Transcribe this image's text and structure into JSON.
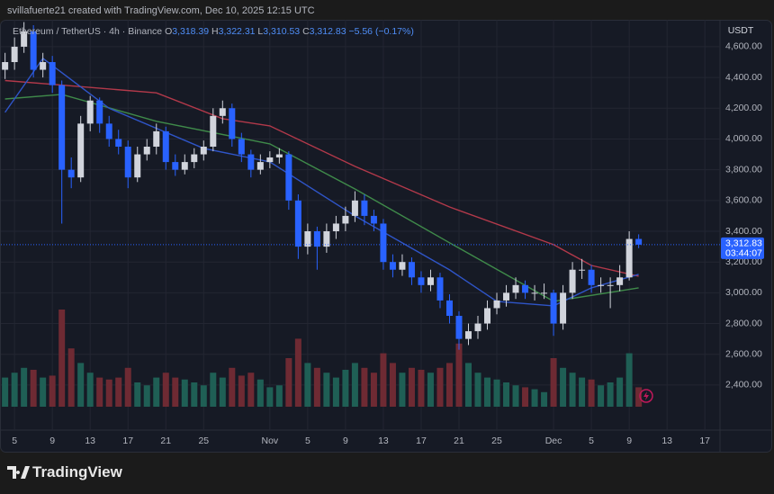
{
  "header": {
    "credit": "svillafuerte21 created with TradingView.com, Dec 10, 2025 12:15 UTC"
  },
  "footer": {
    "brand": "TradingView"
  },
  "chart_data": {
    "type": "candlestick",
    "title": "Ethereum / TetherUS · 4h · Binance",
    "quote": [
      {
        "key": "O",
        "value": 3318.39,
        "label": "3,318.39"
      },
      {
        "key": "H",
        "value": 3322.31,
        "label": "3,322.31"
      },
      {
        "key": "L",
        "value": 3310.53,
        "label": "3,310.53"
      },
      {
        "key": "C",
        "value": 3312.83,
        "label": "3,312.83"
      }
    ],
    "change": {
      "value": -5.56,
      "label": "−5.56"
    },
    "change_pct": {
      "value": -0.17,
      "label": "(−0.17%)"
    },
    "currency": "USDT",
    "last_price": {
      "value": 3312.83,
      "label": "3,312.83"
    },
    "countdown": "03:44:07",
    "up_color": "#d1d4dc",
    "down_color": "#2962ff",
    "volume_up_color": "#1f5f55",
    "volume_down_color": "#6e2a33",
    "x": [
      "2025-10-04",
      "2025-10-05",
      "2025-10-06",
      "2025-10-07",
      "2025-10-08",
      "2025-10-09",
      "2025-10-10",
      "2025-10-11",
      "2025-10-12",
      "2025-10-13",
      "2025-10-14",
      "2025-10-15",
      "2025-10-16",
      "2025-10-17",
      "2025-10-18",
      "2025-10-19",
      "2025-10-20",
      "2025-10-21",
      "2025-10-22",
      "2025-10-23",
      "2025-10-24",
      "2025-10-25",
      "2025-10-26",
      "2025-10-27",
      "2025-10-28",
      "2025-10-29",
      "2025-10-30",
      "2025-10-31",
      "2025-11-01",
      "2025-11-02",
      "2025-11-03",
      "2025-11-04",
      "2025-11-05",
      "2025-11-06",
      "2025-11-07",
      "2025-11-08",
      "2025-11-09",
      "2025-11-10",
      "2025-11-11",
      "2025-11-12",
      "2025-11-13",
      "2025-11-14",
      "2025-11-15",
      "2025-11-16",
      "2025-11-17",
      "2025-11-18",
      "2025-11-19",
      "2025-11-20",
      "2025-11-21",
      "2025-11-22",
      "2025-11-23",
      "2025-11-24",
      "2025-11-25",
      "2025-11-26",
      "2025-11-27",
      "2025-11-28",
      "2025-11-29",
      "2025-11-30",
      "2025-12-01",
      "2025-12-02",
      "2025-12-03",
      "2025-12-04",
      "2025-12-05",
      "2025-12-06",
      "2025-12-07",
      "2025-12-08",
      "2025-12-09",
      "2025-12-10"
    ],
    "open": [
      4450,
      4500,
      4600,
      4700,
      4450,
      4500,
      4350,
      3800,
      3750,
      4100,
      4250,
      4100,
      4000,
      3950,
      3750,
      3900,
      3950,
      4050,
      3850,
      3800,
      3850,
      3900,
      3950,
      4150,
      4200,
      4000,
      3900,
      3800,
      3850,
      3880,
      3900,
      3600,
      3300,
      3400,
      3300,
      3400,
      3450,
      3500,
      3600,
      3500,
      3450,
      3200,
      3150,
      3200,
      3100,
      3050,
      3100,
      2950,
      2850,
      2700,
      2750,
      2800,
      2900,
      2950,
      3000,
      3050,
      3000,
      3000,
      3000,
      2800,
      3000,
      3150,
      3150,
      3050,
      3050,
      3050,
      3100,
      3350
    ],
    "high": [
      4560,
      4660,
      4760,
      4740,
      4560,
      4540,
      4380,
      3880,
      4150,
      4280,
      4270,
      4150,
      4060,
      3990,
      3950,
      4000,
      4100,
      4080,
      3900,
      3900,
      3940,
      3990,
      4200,
      4250,
      4230,
      4040,
      3930,
      3900,
      3920,
      3940,
      3920,
      3640,
      3450,
      3430,
      3450,
      3500,
      3560,
      3660,
      3640,
      3540,
      3480,
      3250,
      3250,
      3230,
      3140,
      3150,
      3130,
      2990,
      2880,
      2800,
      2850,
      2950,
      3000,
      3050,
      3100,
      3080,
      3050,
      3060,
      3020,
      3050,
      3200,
      3220,
      3180,
      3100,
      3100,
      3180,
      3400,
      3380
    ],
    "low": [
      4390,
      4450,
      4560,
      4400,
      4400,
      4300,
      3450,
      3680,
      3720,
      4050,
      4040,
      3950,
      3900,
      3680,
      3720,
      3860,
      3900,
      3800,
      3760,
      3770,
      3810,
      3860,
      3920,
      4100,
      3950,
      3850,
      3750,
      3770,
      3810,
      3840,
      3540,
      3220,
      3250,
      3150,
      3260,
      3350,
      3400,
      3460,
      3440,
      3400,
      3150,
      3100,
      3110,
      3050,
      3000,
      3010,
      2900,
      2800,
      2630,
      2660,
      2700,
      2760,
      2860,
      2910,
      2960,
      2960,
      2950,
      2960,
      2720,
      2760,
      2960,
      3090,
      3000,
      3000,
      2900,
      3010,
      3080,
      3290
    ],
    "close": [
      4500,
      4600,
      4700,
      4450,
      4500,
      4350,
      3800,
      3750,
      4100,
      4250,
      4100,
      4000,
      3950,
      3750,
      3900,
      3950,
      4050,
      3850,
      3800,
      3850,
      3900,
      3950,
      4150,
      4200,
      4000,
      3900,
      3800,
      3850,
      3880,
      3900,
      3600,
      3300,
      3400,
      3300,
      3400,
      3450,
      3500,
      3600,
      3500,
      3450,
      3200,
      3150,
      3200,
      3100,
      3050,
      3100,
      2950,
      2850,
      2700,
      2750,
      2800,
      2900,
      2950,
      3000,
      3050,
      3000,
      3000,
      3000,
      2800,
      3000,
      3150,
      3150,
      3050,
      3050,
      3050,
      3100,
      3350,
      3312.83
    ],
    "volume": [
      30,
      35,
      40,
      38,
      30,
      32,
      100,
      60,
      45,
      35,
      30,
      28,
      30,
      40,
      25,
      22,
      30,
      35,
      30,
      28,
      25,
      22,
      35,
      30,
      40,
      32,
      35,
      28,
      20,
      22,
      50,
      70,
      45,
      40,
      35,
      30,
      38,
      45,
      40,
      35,
      55,
      45,
      35,
      40,
      38,
      35,
      40,
      45,
      65,
      45,
      35,
      30,
      28,
      25,
      22,
      20,
      18,
      15,
      50,
      40,
      35,
      30,
      28,
      22,
      25,
      30,
      55,
      20
    ],
    "moving_averages": [
      {
        "color": "#b2394a",
        "x": [
          "2025-10-04",
          "2025-10-10",
          "2025-10-20",
          "2025-10-27",
          "2025-11-01",
          "2025-11-10",
          "2025-11-20",
          "2025-12-01",
          "2025-12-05",
          "2025-12-10"
        ],
        "values": [
          4380,
          4350,
          4300,
          4132,
          4085,
          3822,
          3558,
          3313,
          3178,
          3108
        ]
      },
      {
        "color": "#3f8a4a",
        "x": [
          "2025-10-04",
          "2025-10-10",
          "2025-10-20",
          "2025-11-01",
          "2025-11-10",
          "2025-11-20",
          "2025-12-01",
          "2025-12-10"
        ],
        "values": [
          4260,
          4290,
          4115,
          3968,
          3675,
          3325,
          2944,
          3032
        ]
      },
      {
        "color": "#2f55c8",
        "x": [
          "2025-10-04",
          "2025-10-08",
          "2025-10-15",
          "2025-10-25",
          "2025-11-01",
          "2025-11-10",
          "2025-11-20",
          "2025-11-25",
          "2025-12-01",
          "2025-12-05",
          "2025-12-10"
        ],
        "values": [
          4173,
          4524,
          4200,
          3939,
          3851,
          3500,
          3149,
          2944,
          2915,
          3032,
          3120
        ]
      }
    ],
    "xlim": [
      "2025-10-03T13:25",
      "2025-12-18T14:24"
    ],
    "xticks": [
      {
        "value": "2025-10-05",
        "label": "5"
      },
      {
        "value": "2025-10-09",
        "label": "9"
      },
      {
        "value": "2025-10-13",
        "label": "13"
      },
      {
        "value": "2025-10-17",
        "label": "17"
      },
      {
        "value": "2025-10-21",
        "label": "21"
      },
      {
        "value": "2025-10-25",
        "label": "25"
      },
      {
        "value": "2025-11-01",
        "label": "Nov"
      },
      {
        "value": "2025-11-05",
        "label": "5"
      },
      {
        "value": "2025-11-09",
        "label": "9"
      },
      {
        "value": "2025-11-13",
        "label": "13"
      },
      {
        "value": "2025-11-17",
        "label": "17"
      },
      {
        "value": "2025-11-21",
        "label": "21"
      },
      {
        "value": "2025-11-25",
        "label": "25"
      },
      {
        "value": "2025-12-01",
        "label": "Dec"
      },
      {
        "value": "2025-12-05",
        "label": "5"
      },
      {
        "value": "2025-12-09",
        "label": "9"
      },
      {
        "value": "2025-12-13",
        "label": "13"
      },
      {
        "value": "2025-12-17",
        "label": "17"
      }
    ],
    "ylim": [
      2107,
      4775
    ],
    "yticks": [
      {
        "value": 2400,
        "label": "2,400.00"
      },
      {
        "value": 2600,
        "label": "2,600.00"
      },
      {
        "value": 2800,
        "label": "2,800.00"
      },
      {
        "value": 3000,
        "label": "3,000.00"
      },
      {
        "value": 3200,
        "label": "3,200.00"
      },
      {
        "value": 3400,
        "label": "3,400.00"
      },
      {
        "value": 3600,
        "label": "3,600.00"
      },
      {
        "value": 3800,
        "label": "3,800.00"
      },
      {
        "value": 4000,
        "label": "4,000.00"
      },
      {
        "value": 4200,
        "label": "4,200.00"
      },
      {
        "value": 4400,
        "label": "4,400.00"
      },
      {
        "value": 4600,
        "label": "4,600.00"
      }
    ],
    "grid": true
  }
}
